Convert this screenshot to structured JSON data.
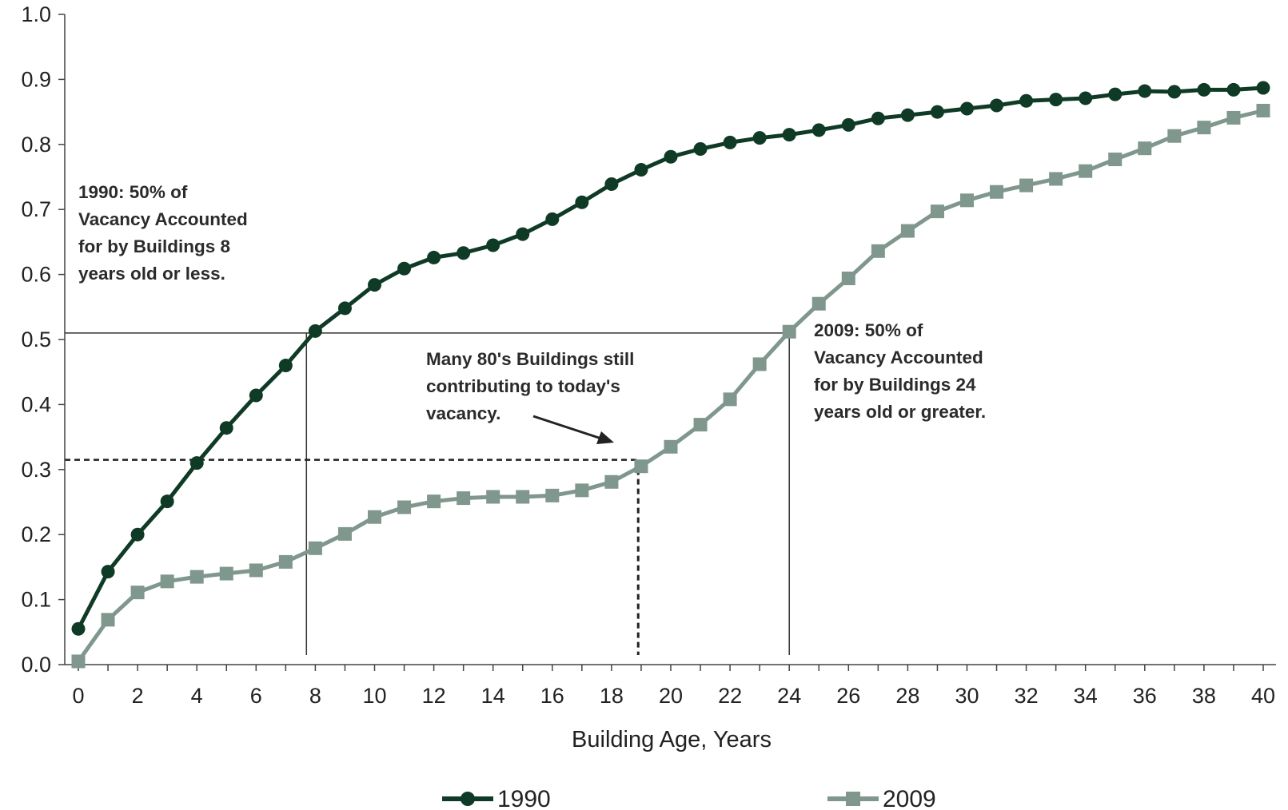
{
  "chart_data": {
    "type": "line",
    "xlabel": "Building Age, Years",
    "ylabel": "",
    "xlim": [
      0,
      40
    ],
    "ylim": [
      0.0,
      1.0
    ],
    "x_ticks": [
      "0",
      "2",
      "4",
      "6",
      "8",
      "10",
      "12",
      "14",
      "16",
      "18",
      "20",
      "22",
      "24",
      "26",
      "28",
      "30",
      "32",
      "34",
      "36",
      "38",
      "40"
    ],
    "y_ticks": [
      "0.0",
      "0.1",
      "0.2",
      "0.3",
      "0.4",
      "0.5",
      "0.6",
      "0.7",
      "0.8",
      "0.9",
      "1.0"
    ],
    "grid": false,
    "legend_position": "bottom",
    "x": [
      0,
      1,
      2,
      3,
      4,
      5,
      6,
      7,
      8,
      9,
      10,
      11,
      12,
      13,
      14,
      15,
      16,
      17,
      18,
      19,
      20,
      21,
      22,
      23,
      24,
      25,
      26,
      27,
      28,
      29,
      30,
      31,
      32,
      33,
      34,
      35,
      36,
      37,
      38,
      39,
      40
    ],
    "series": [
      {
        "name": "1990",
        "marker": "circle",
        "color": "#0f3a26",
        "values": [
          0.055,
          0.143,
          0.2,
          0.251,
          0.31,
          0.364,
          0.414,
          0.46,
          0.513,
          0.548,
          0.584,
          0.609,
          0.626,
          0.633,
          0.645,
          0.662,
          0.685,
          0.711,
          0.739,
          0.761,
          0.781,
          0.793,
          0.803,
          0.81,
          0.815,
          0.822,
          0.83,
          0.84,
          0.845,
          0.85,
          0.855,
          0.86,
          0.867,
          0.869,
          0.871,
          0.877,
          0.882,
          0.881,
          0.884,
          0.884,
          0.887
        ]
      },
      {
        "name": "2009",
        "marker": "square",
        "color": "#7f978c",
        "values": [
          0.005,
          0.069,
          0.111,
          0.128,
          0.135,
          0.14,
          0.145,
          0.158,
          0.179,
          0.201,
          0.227,
          0.242,
          0.251,
          0.256,
          0.258,
          0.258,
          0.26,
          0.268,
          0.281,
          0.305,
          0.335,
          0.369,
          0.408,
          0.462,
          0.512,
          0.555,
          0.594,
          0.636,
          0.667,
          0.697,
          0.714,
          0.727,
          0.737,
          0.747,
          0.759,
          0.777,
          0.794,
          0.813,
          0.826,
          0.841,
          0.852
        ]
      }
    ],
    "reference_lines": [
      {
        "style": "solid",
        "x": 7.7,
        "y": 0.51,
        "x_to": 24.0
      },
      {
        "style": "dashed",
        "x": 18.9,
        "y": 0.315
      }
    ],
    "annotations": [
      {
        "id": "note_1990",
        "lines": [
          "1990:  50% of",
          "Vacancy Accounted",
          "for by Buildings 8",
          "years old or less."
        ]
      },
      {
        "id": "note_80s",
        "lines": [
          "Many 80's Buildings still",
          "contributing to today's",
          "vacancy."
        ]
      },
      {
        "id": "note_2009",
        "lines": [
          "2009:  50% of",
          "Vacancy Accounted",
          "for by Buildings 24",
          "years old or greater."
        ]
      }
    ]
  }
}
